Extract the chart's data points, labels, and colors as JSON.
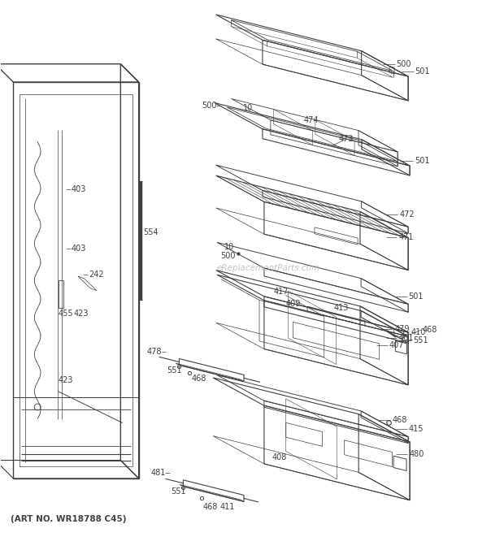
{
  "bg_color": "#ffffff",
  "line_color": "#404040",
  "label_color": "#404040",
  "label_fontsize": 7.0,
  "art_no_text": "(ART NO. WR18788 C45)",
  "art_no_fontsize": 7.5,
  "watermark": "eReplacementParts.com"
}
